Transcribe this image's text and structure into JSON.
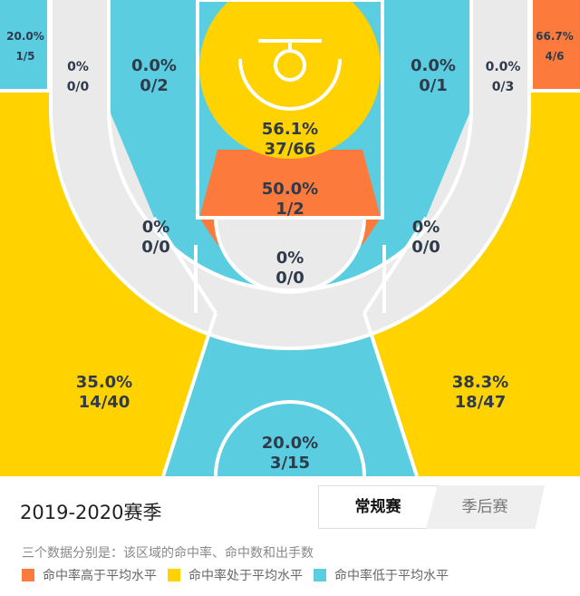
{
  "colors": {
    "above": "#fb7a3c",
    "average": "#ffd200",
    "below": "#5bcde0",
    "neutral": "#ebeaea",
    "line": "#ffffff"
  },
  "zones": {
    "left_corner": {
      "pct": "20.0%",
      "ratio": "1/5"
    },
    "left_outer_wing": {
      "pct": "0%",
      "ratio": "0/0"
    },
    "left_mid_baseline": {
      "pct": "0.0%",
      "ratio": "0/2"
    },
    "restricted": {
      "pct": "56.1%",
      "ratio": "37/66"
    },
    "paint": {
      "pct": "50.0%",
      "ratio": "1/2"
    },
    "right_mid_baseline": {
      "pct": "0.0%",
      "ratio": "0/1"
    },
    "right_outer_wing": {
      "pct": "0.0%",
      "ratio": "0/3"
    },
    "right_corner": {
      "pct": "66.7%",
      "ratio": "4/6"
    },
    "left_elbow": {
      "pct": "0%",
      "ratio": "0/0"
    },
    "right_elbow": {
      "pct": "0%",
      "ratio": "0/0"
    },
    "top_key": {
      "pct": "0%",
      "ratio": "0/0"
    },
    "left_three": {
      "pct": "35.0%",
      "ratio": "14/40"
    },
    "right_three": {
      "pct": "38.3%",
      "ratio": "18/47"
    },
    "top_three": {
      "pct": "20.0%",
      "ratio": "3/15"
    }
  },
  "footer": {
    "season": "2019-2020赛季",
    "tab_regular": "常规赛",
    "tab_playoffs": "季后赛",
    "description": "三个数据分别是：该区域的命中率、命中数和出手数",
    "legend": {
      "above": "命中率高于平均水平",
      "average": "命中率处于平均水平",
      "below": "命中率低于平均水平"
    }
  }
}
